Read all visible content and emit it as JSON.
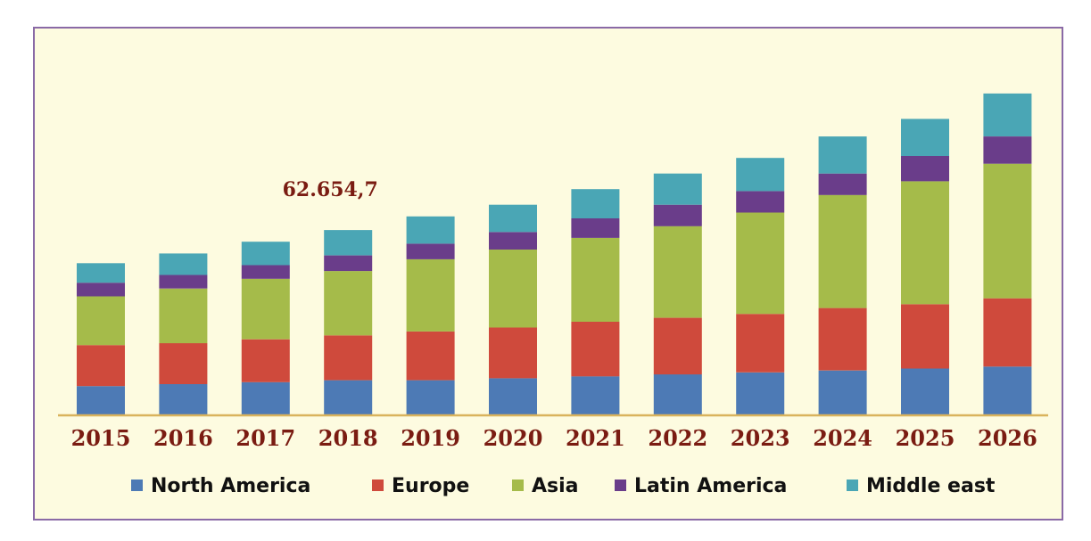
{
  "chart_data": {
    "type": "bar",
    "stacked": true,
    "categories": [
      "2015",
      "2016",
      "2017",
      "2018",
      "2019",
      "2020",
      "2021",
      "2022",
      "2023",
      "2024",
      "2025",
      "2026"
    ],
    "series": [
      {
        "name": "North America",
        "color": "#4d7ab5",
        "values": [
          30,
          32,
          34,
          36,
          36,
          38,
          40,
          42,
          44,
          46,
          48,
          50
        ]
      },
      {
        "name": "Europe",
        "color": "#cf4a3c",
        "values": [
          42,
          42,
          44,
          46,
          50,
          52,
          56,
          58,
          60,
          64,
          66,
          70
        ]
      },
      {
        "name": "Asia",
        "color": "#a5bb4a",
        "values": [
          50,
          56,
          62,
          66,
          74,
          80,
          86,
          94,
          104,
          116,
          126,
          138
        ]
      },
      {
        "name": "Latin America",
        "color": "#6a3d8a",
        "values": [
          14,
          14,
          14,
          16,
          16,
          18,
          20,
          22,
          22,
          22,
          26,
          28
        ]
      },
      {
        "name": "Middle east",
        "color": "#4aa6b5",
        "values": [
          20,
          22,
          24,
          26,
          28,
          28,
          30,
          32,
          34,
          38,
          38,
          44
        ]
      }
    ],
    "annotation": {
      "text": "62.654,7",
      "category": "2018"
    },
    "legend_position": "bottom",
    "grid": false,
    "ylim": [
      0,
      340
    ]
  }
}
